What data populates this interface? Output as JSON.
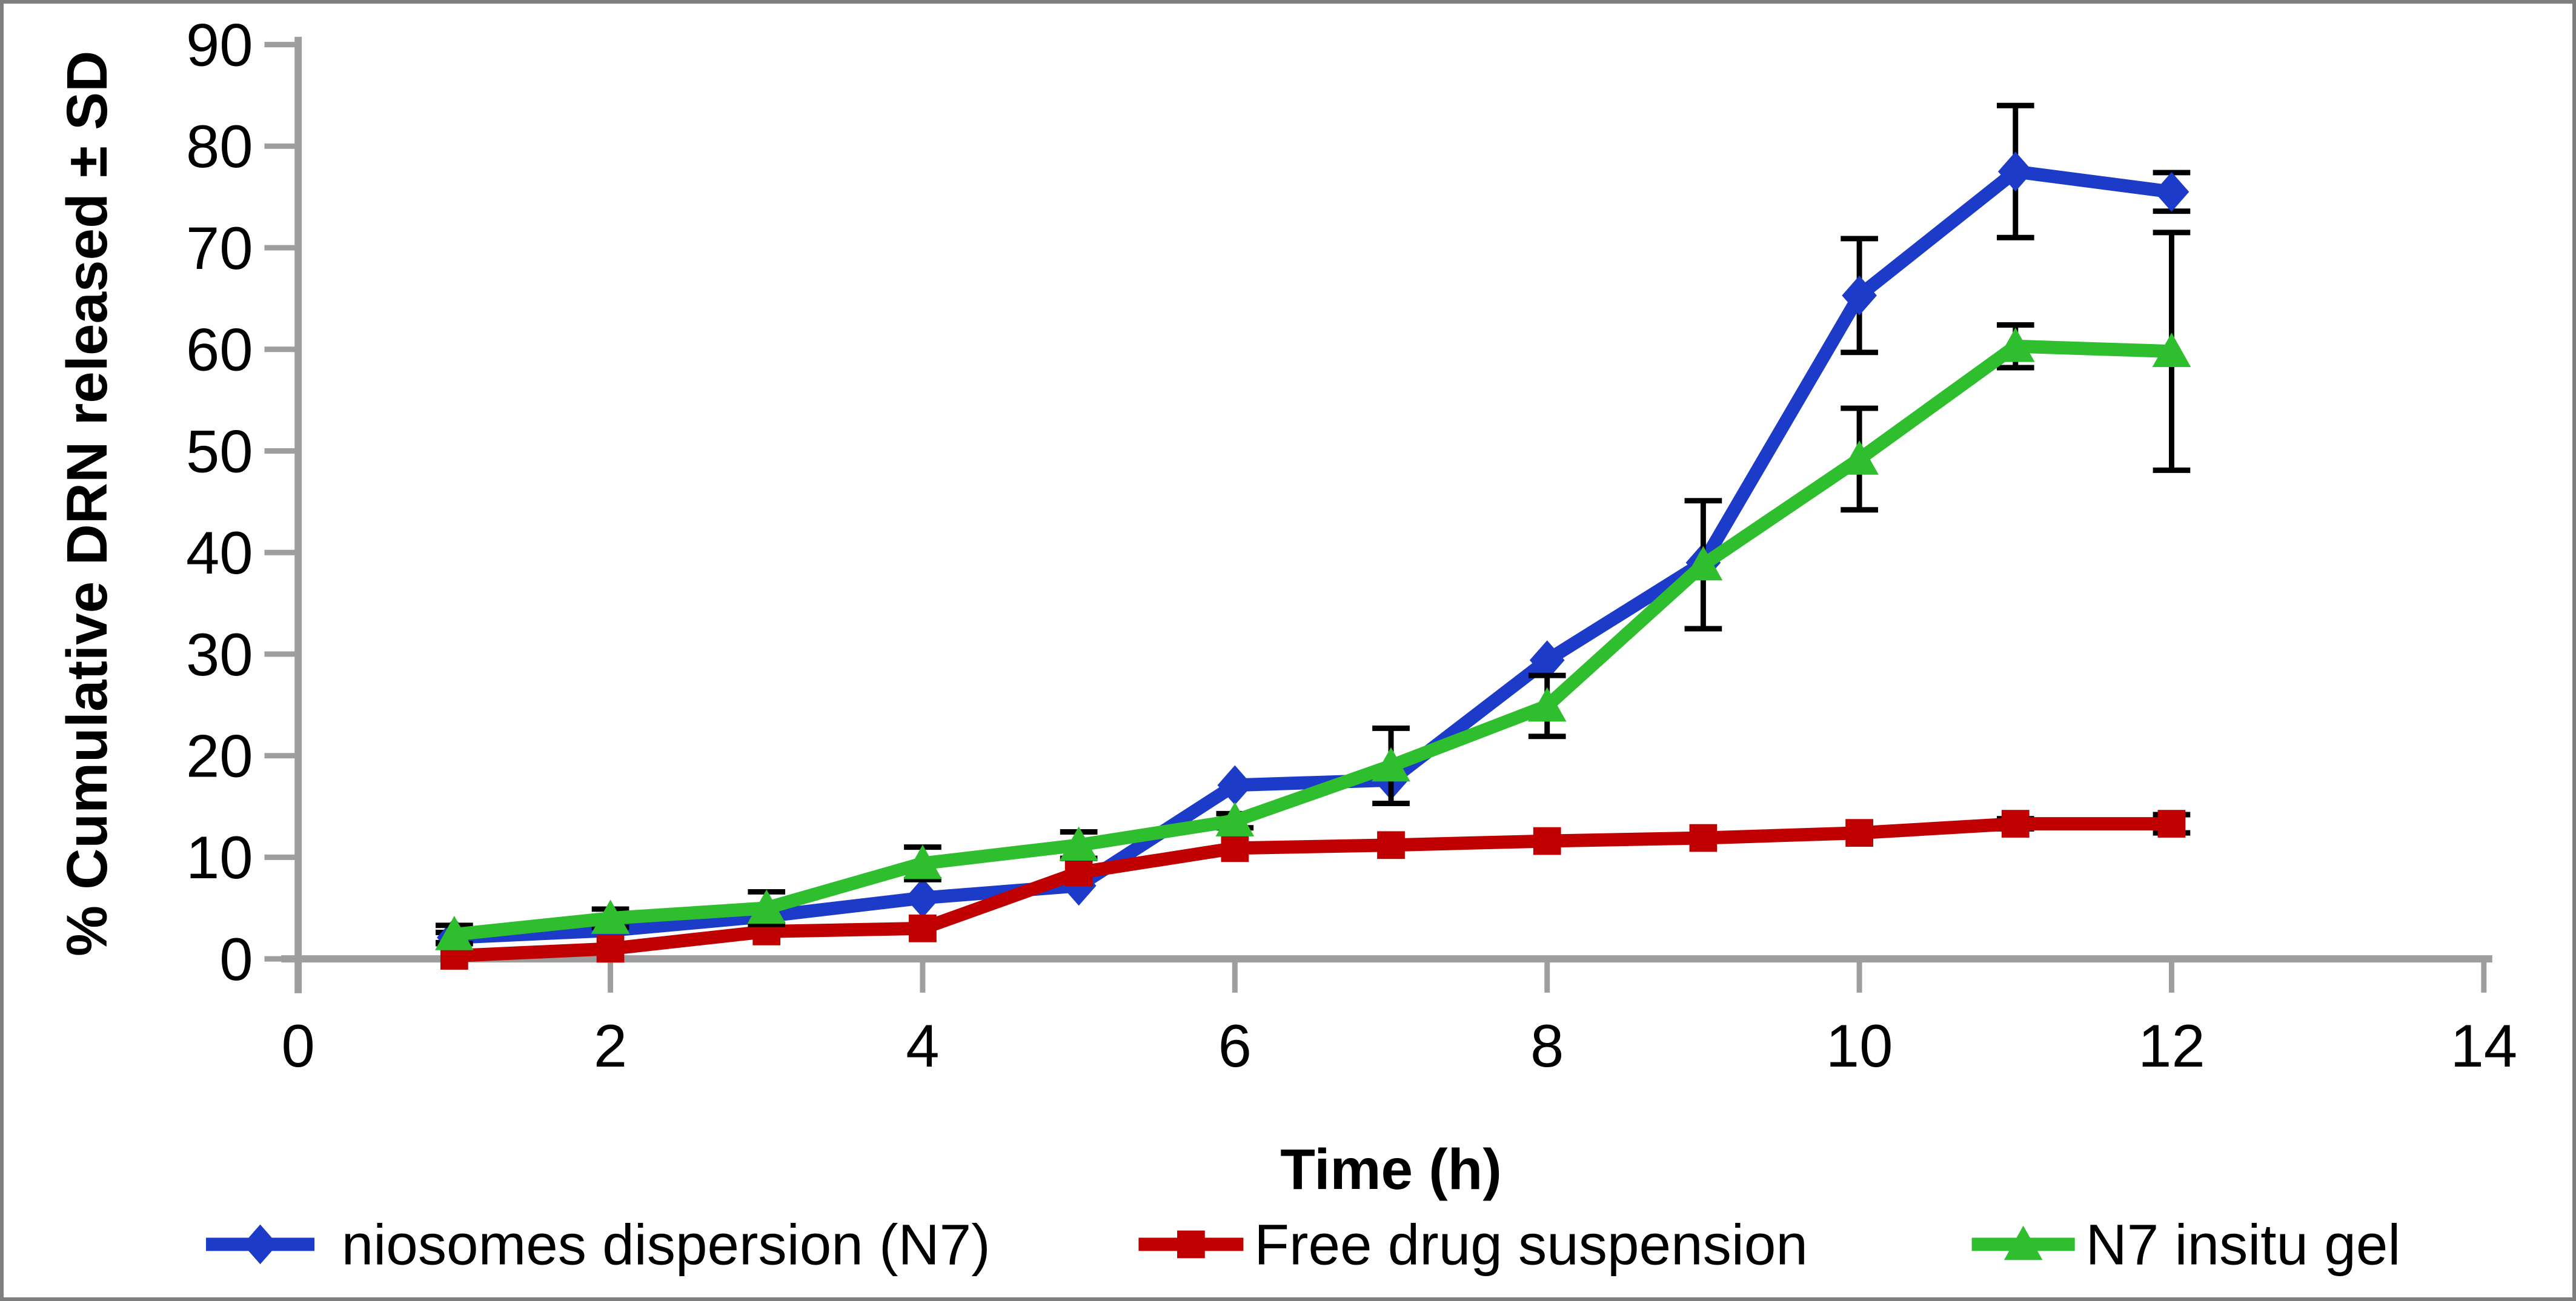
{
  "chart_data": {
    "type": "line",
    "title": "",
    "xlabel": "Time (h)",
    "ylabel": "% Cumulative DRN released ± SD",
    "x": [
      1,
      2,
      3,
      4,
      5,
      6,
      7,
      8,
      9,
      10,
      11,
      12
    ],
    "xlim": [
      0,
      14
    ],
    "ylim": [
      0,
      90
    ],
    "x_ticks": [
      0,
      2,
      4,
      6,
      8,
      10,
      12,
      14
    ],
    "y_ticks": [
      0,
      10,
      20,
      30,
      40,
      50,
      60,
      70,
      80,
      90
    ],
    "grid": "off",
    "legend_position": "bottom",
    "error_bars": "plus-minus SD, black with caps",
    "series": [
      {
        "name": "niosomes dispersion (N7)",
        "marker": "diamond",
        "color": "#1C3BC8",
        "values": [
          2.1,
          2.8,
          4.2,
          6.0,
          7.2,
          17.1,
          17.6,
          29.4,
          39.0,
          65.3,
          77.5,
          75.5
        ],
        "sd": [
          0.5,
          0,
          0,
          0,
          0,
          0,
          0,
          0,
          0,
          5.6,
          6.5,
          1.9
        ]
      },
      {
        "name": "Free drug suspension",
        "marker": "square",
        "color": "#C00000",
        "values": [
          0.3,
          1.0,
          2.7,
          3.0,
          8.5,
          10.9,
          11.2,
          11.6,
          11.9,
          12.4,
          13.3,
          13.3
        ],
        "sd": [
          0,
          0,
          0,
          0,
          0,
          0,
          0,
          0,
          0,
          0,
          0.5,
          0.9
        ]
      },
      {
        "name": "N7 insitu gel",
        "marker": "triangle-up",
        "color": "#2EBE2E",
        "values": [
          2.4,
          4.0,
          5.0,
          9.4,
          11.2,
          13.6,
          19.0,
          24.9,
          38.8,
          49.2,
          60.3,
          59.8
        ],
        "sd": [
          0.9,
          0.9,
          1.6,
          1.6,
          1.3,
          0.7,
          3.7,
          3.0,
          6.3,
          5.0,
          2.1,
          11.7
        ]
      }
    ]
  },
  "axes": {
    "x_tick_labels": [
      "0",
      "2",
      "4",
      "6",
      "8",
      "10",
      "12",
      "14"
    ],
    "y_tick_labels": [
      "0",
      "10",
      "20",
      "30",
      "40",
      "50",
      "60",
      "70",
      "80",
      "90"
    ],
    "axis_color": "#9E9E9E",
    "error_bar_color": "#000000"
  },
  "legend": {
    "items": [
      {
        "label": "niosomes dispersion (N7)",
        "marker": "diamond",
        "color": "#1C3BC8"
      },
      {
        "label": "Free drug suspension",
        "marker": "square",
        "color": "#C00000"
      },
      {
        "label": "N7 insitu gel",
        "marker": "triangle-up",
        "color": "#2EBE2E"
      }
    ]
  }
}
